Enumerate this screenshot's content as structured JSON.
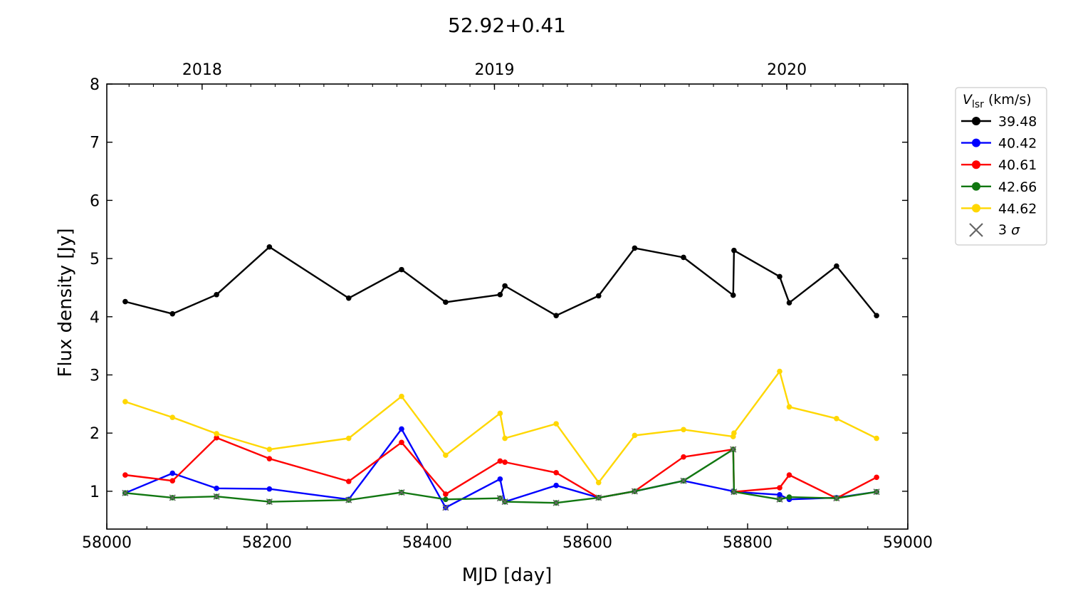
{
  "chart_data": {
    "type": "line",
    "title": "52.92+0.41",
    "xlabel": "MJD [day]",
    "ylabel": "Flux density [Jy]",
    "xlim": [
      58000,
      59000
    ],
    "ylim": [
      0.35,
      8
    ],
    "xticks": [
      58000,
      58200,
      58400,
      58600,
      58800,
      59000
    ],
    "yticks": [
      1,
      2,
      3,
      4,
      5,
      6,
      7,
      8
    ],
    "top_axis": {
      "labels": [
        "2018",
        "2019",
        "2020"
      ],
      "positions_mjd": [
        58119,
        58484,
        58849
      ]
    },
    "grid": false,
    "legend": {
      "placement": "outside-right",
      "title_main": "V",
      "title_sub": "lsr",
      "title_rest": " (km/s)",
      "sigma_label": "3 σ"
    },
    "x": [
      58023,
      58082,
      58137,
      58203,
      58302,
      58368,
      58423,
      58491,
      58497,
      58561,
      58614,
      58659,
      58720,
      58782,
      58783,
      58840,
      58852,
      58911,
      58961
    ],
    "series": [
      {
        "name": "39.48",
        "color": "#000000",
        "values": [
          4.26,
          4.05,
          4.38,
          5.2,
          4.32,
          4.81,
          4.25,
          4.38,
          4.53,
          4.02,
          4.36,
          5.18,
          5.02,
          4.37,
          5.14,
          4.69,
          4.24,
          4.87,
          4.02
        ],
        "sigma": []
      },
      {
        "name": "40.42",
        "color": "#0000ff",
        "values": [
          0.97,
          1.31,
          1.05,
          1.04,
          0.86,
          2.07,
          0.72,
          1.21,
          0.82,
          1.1,
          0.89,
          1.0,
          1.18,
          1.0,
          0.99,
          0.94,
          0.86,
          0.89,
          0.99
        ],
        "sigma": [
          6
        ]
      },
      {
        "name": "40.61",
        "color": "#ff0000",
        "values": [
          1.28,
          1.18,
          1.92,
          1.56,
          1.17,
          1.84,
          0.95,
          1.52,
          1.5,
          1.32,
          0.89,
          1.0,
          1.59,
          1.72,
          0.99,
          1.06,
          1.28,
          0.88,
          1.24
        ],
        "sigma": []
      },
      {
        "name": "42.66",
        "color": "#117711",
        "values": [
          0.97,
          0.89,
          0.91,
          0.82,
          0.85,
          0.98,
          0.86,
          0.88,
          0.82,
          0.8,
          0.89,
          1.0,
          1.18,
          1.72,
          0.99,
          0.86,
          0.9,
          0.88,
          0.99
        ],
        "sigma": [
          0,
          1,
          2,
          3,
          4,
          5,
          7,
          8,
          9,
          10,
          11,
          12,
          13,
          14,
          15,
          17,
          18
        ]
      },
      {
        "name": "44.62",
        "color": "#ffd700",
        "values": [
          2.54,
          2.27,
          1.99,
          1.72,
          1.91,
          2.63,
          1.62,
          2.34,
          1.91,
          2.16,
          1.15,
          1.96,
          2.06,
          1.94,
          2.0,
          3.06,
          2.45,
          2.25,
          1.91
        ],
        "sigma": []
      }
    ]
  }
}
